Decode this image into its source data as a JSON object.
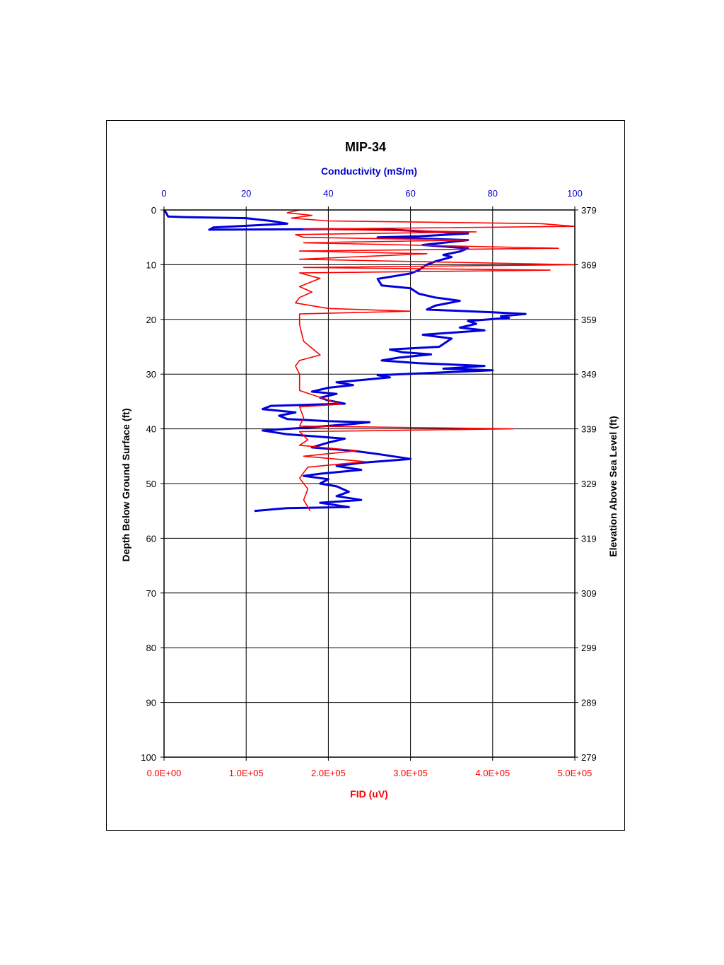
{
  "chart_data": {
    "type": "line",
    "title": "MIP-34",
    "top_axis": {
      "label": "Conductivity (mS/m)",
      "range": [
        0,
        100
      ],
      "ticks": [
        "0",
        "20",
        "40",
        "60",
        "80",
        "100"
      ],
      "color": "#0000cc"
    },
    "bottom_axis": {
      "label": "FID (uV)",
      "range": [
        0,
        500000
      ],
      "ticks": [
        "0.0E+00",
        "1.0E+05",
        "2.0E+05",
        "3.0E+05",
        "4.0E+05",
        "5.0E+05"
      ],
      "color": "#ff0000"
    },
    "left_axis": {
      "label": "Depth Below Ground Surface (ft)",
      "range": [
        0,
        100
      ],
      "ticks": [
        "0",
        "10",
        "20",
        "30",
        "40",
        "50",
        "60",
        "70",
        "80",
        "90",
        "100"
      ]
    },
    "right_axis": {
      "label": "Elevation Above Sea Level (ft)",
      "ticks": [
        "379",
        "369",
        "359",
        "349",
        "339",
        "329",
        "319",
        "309",
        "299",
        "289",
        "279"
      ]
    },
    "grid": true,
    "series": [
      {
        "axis": "top",
        "color": "#0000dd",
        "points": [
          [
            0,
            0
          ],
          [
            0.5,
            0.5
          ],
          [
            1,
            1.2
          ],
          [
            5,
            1.3
          ],
          [
            20,
            1.5
          ],
          [
            26,
            2
          ],
          [
            30,
            2.5
          ],
          [
            12,
            3.2
          ],
          [
            11,
            3.6
          ],
          [
            40,
            3.5
          ],
          [
            55,
            3.6
          ],
          [
            74,
            4.3
          ],
          [
            62,
            4.8
          ],
          [
            52,
            5
          ],
          [
            74,
            5.5
          ],
          [
            68,
            6
          ],
          [
            63,
            6.4
          ],
          [
            74,
            7
          ],
          [
            72,
            7.6
          ],
          [
            68,
            8.2
          ],
          [
            70,
            8.6
          ],
          [
            66,
            9.4
          ],
          [
            64,
            10
          ],
          [
            62,
            11
          ],
          [
            60,
            11.6
          ],
          [
            52,
            12.6
          ],
          [
            53,
            13.8
          ],
          [
            60,
            14.3
          ],
          [
            62,
            15.3
          ],
          [
            66,
            16
          ],
          [
            72,
            16.6
          ],
          [
            66,
            17.5
          ],
          [
            64,
            18.2
          ],
          [
            80,
            18.7
          ],
          [
            88,
            19
          ],
          [
            82,
            19.4
          ],
          [
            84,
            19.7
          ],
          [
            74,
            20.3
          ],
          [
            76,
            20.8
          ],
          [
            72,
            21.5
          ],
          [
            78,
            22
          ],
          [
            63,
            22.8
          ],
          [
            70,
            23.5
          ],
          [
            67,
            25
          ],
          [
            55,
            25.5
          ],
          [
            58,
            26
          ],
          [
            65,
            26.4
          ],
          [
            57,
            27
          ],
          [
            53,
            27.5
          ],
          [
            62,
            28
          ],
          [
            78,
            28.5
          ],
          [
            68,
            29
          ],
          [
            80,
            29.3
          ],
          [
            64,
            29.8
          ],
          [
            52,
            30.2
          ],
          [
            55,
            30.6
          ],
          [
            42,
            31.5
          ],
          [
            46,
            32
          ],
          [
            40,
            32.5
          ],
          [
            36,
            33.2
          ],
          [
            42,
            33.6
          ],
          [
            38,
            34.3
          ],
          [
            40,
            34.8
          ],
          [
            44,
            35.4
          ],
          [
            26,
            35.8
          ],
          [
            24,
            36.4
          ],
          [
            32,
            37
          ],
          [
            28,
            37.6
          ],
          [
            30,
            38.2
          ],
          [
            40,
            38.6
          ],
          [
            50,
            38.8
          ],
          [
            46,
            39.1
          ],
          [
            34,
            39.8
          ],
          [
            24,
            40.3
          ],
          [
            30,
            41
          ],
          [
            44,
            41.8
          ],
          [
            40,
            42.5
          ],
          [
            36,
            43.4
          ],
          [
            46,
            44
          ],
          [
            52,
            44.6
          ],
          [
            60,
            45.5
          ],
          [
            48,
            46.2
          ],
          [
            42,
            46.8
          ],
          [
            48,
            47.5
          ],
          [
            38,
            48.2
          ],
          [
            34,
            48.6
          ],
          [
            40,
            49.2
          ],
          [
            38,
            50
          ],
          [
            42,
            50.5
          ],
          [
            45,
            51.5
          ],
          [
            42,
            52.3
          ],
          [
            48,
            53
          ],
          [
            38,
            53.5
          ],
          [
            45,
            54.3
          ],
          [
            30,
            54.5
          ],
          [
            22,
            55
          ]
        ]
      },
      {
        "axis": "bottom",
        "color": "#ff0000",
        "points": [
          [
            165000,
            0
          ],
          [
            150000,
            0.5
          ],
          [
            180000,
            1
          ],
          [
            155000,
            1.5
          ],
          [
            200000,
            2
          ],
          [
            460000,
            2.5
          ],
          [
            500000,
            3
          ],
          [
            170000,
            3.5
          ],
          [
            380000,
            4
          ],
          [
            160000,
            4.5
          ],
          [
            170000,
            5
          ],
          [
            370000,
            5.5
          ],
          [
            170000,
            6
          ],
          [
            480000,
            7
          ],
          [
            165000,
            7.5
          ],
          [
            320000,
            8
          ],
          [
            165000,
            9
          ],
          [
            500000,
            10
          ],
          [
            170000,
            10.5
          ],
          [
            470000,
            11
          ],
          [
            165000,
            11.5
          ],
          [
            190000,
            12.5
          ],
          [
            165000,
            14
          ],
          [
            180000,
            15
          ],
          [
            165000,
            16
          ],
          [
            160000,
            17
          ],
          [
            200000,
            18
          ],
          [
            300000,
            18.5
          ],
          [
            165000,
            19
          ],
          [
            165000,
            21
          ],
          [
            170000,
            24
          ],
          [
            190000,
            26.5
          ],
          [
            165000,
            27.5
          ],
          [
            160000,
            28.5
          ],
          [
            165000,
            30
          ],
          [
            165000,
            33
          ],
          [
            215000,
            35.5
          ],
          [
            165000,
            36
          ],
          [
            170000,
            38
          ],
          [
            165000,
            39.5
          ],
          [
            425000,
            40
          ],
          [
            165000,
            40.5
          ],
          [
            175000,
            42
          ],
          [
            165000,
            43
          ],
          [
            235000,
            44
          ],
          [
            170000,
            45
          ],
          [
            245000,
            46
          ],
          [
            175000,
            47
          ],
          [
            170000,
            48
          ],
          [
            165000,
            49
          ],
          [
            175000,
            51
          ],
          [
            170000,
            53
          ],
          [
            178000,
            55
          ]
        ]
      }
    ]
  }
}
